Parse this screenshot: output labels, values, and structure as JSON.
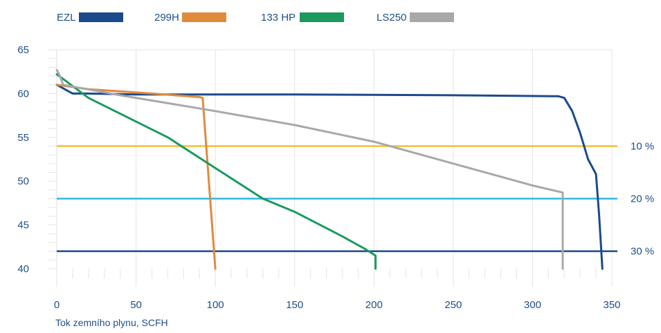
{
  "chart_data": {
    "type": "line",
    "xlabel": "Tok zemního plynu, SCFH",
    "ylabel": "",
    "xlim": [
      0,
      350
    ],
    "ylim": [
      40,
      65
    ],
    "x_ticks": [
      0,
      50,
      100,
      150,
      200,
      250,
      300,
      350
    ],
    "y_ticks": [
      40,
      45,
      50,
      55,
      60,
      65
    ],
    "grid": "vertical",
    "legend_position": "top-left",
    "series": [
      {
        "name": "EZL",
        "color": "#1b4a8c",
        "points": [
          [
            0,
            61
          ],
          [
            5,
            60.5
          ],
          [
            10,
            60
          ],
          [
            20,
            60
          ],
          [
            50,
            59.9
          ],
          [
            150,
            59.9
          ],
          [
            250,
            59.8
          ],
          [
            312,
            59.7
          ],
          [
            316,
            59.7
          ],
          [
            320,
            59.5
          ],
          [
            325,
            58
          ],
          [
            330,
            55.5
          ],
          [
            335,
            52.5
          ],
          [
            340,
            50.8
          ],
          [
            342,
            46
          ],
          [
            344,
            40
          ]
        ]
      },
      {
        "name": "299H",
        "color": "#e08a3c",
        "points": [
          [
            0,
            61
          ],
          [
            20,
            60.5
          ],
          [
            60,
            60
          ],
          [
            90,
            59.6
          ],
          [
            92,
            59.5
          ],
          [
            100,
            40
          ]
        ]
      },
      {
        "name": "133 HP",
        "color": "#1a9a5e",
        "points": [
          [
            0,
            62.2
          ],
          [
            3,
            61.8
          ],
          [
            20,
            59.5
          ],
          [
            70,
            55
          ],
          [
            100,
            51.5
          ],
          [
            130,
            48
          ],
          [
            150,
            46.5
          ],
          [
            180,
            43.7
          ],
          [
            195,
            42.2
          ],
          [
            201,
            41.5
          ],
          [
            201,
            40
          ]
        ]
      },
      {
        "name": "LS250",
        "color": "#a8a8a8",
        "points": [
          [
            0,
            62.7
          ],
          [
            2,
            62
          ],
          [
            4,
            61
          ],
          [
            40,
            59.8
          ],
          [
            100,
            58
          ],
          [
            150,
            56.4
          ],
          [
            200,
            54.5
          ],
          [
            250,
            52
          ],
          [
            300,
            49.5
          ],
          [
            319,
            48.7
          ],
          [
            319,
            40
          ]
        ]
      }
    ],
    "reference_lines": [
      {
        "label": "10 %",
        "y": 54,
        "color": "#f2c033"
      },
      {
        "label": "20 %",
        "y": 48,
        "color": "#2bb7e3"
      },
      {
        "label": "30 %",
        "y": 42,
        "color": "#1b4a8c"
      }
    ]
  },
  "colors": {
    "axis_text": "#1f4e8a",
    "grid": "#e3e3e3",
    "axis_line": "#e3e3e3"
  }
}
